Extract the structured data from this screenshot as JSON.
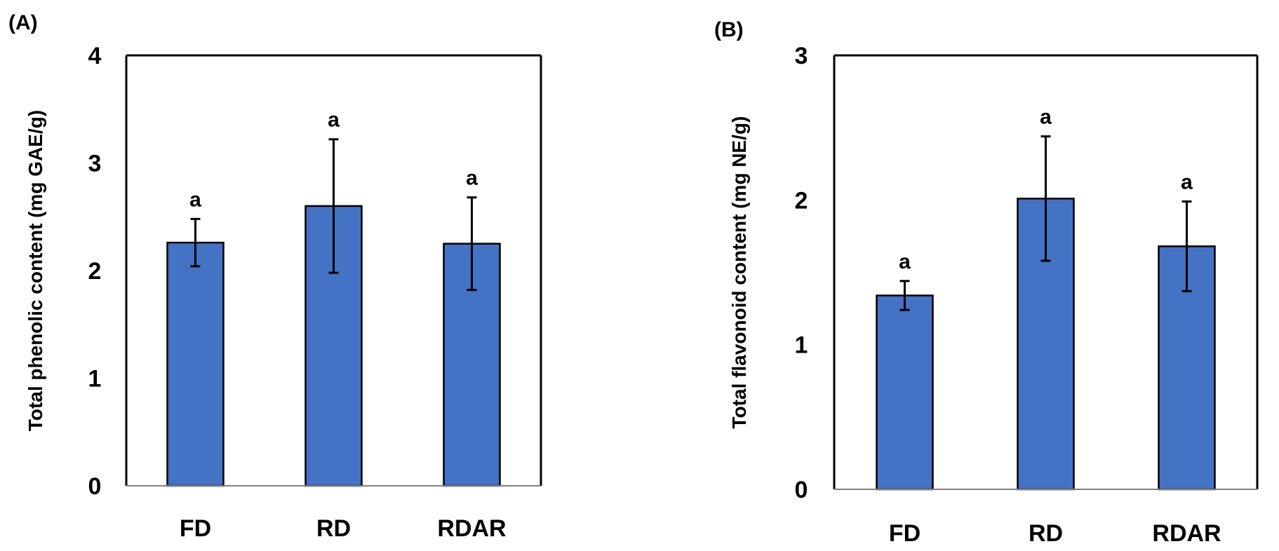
{
  "chart_data": [
    {
      "type": "bar",
      "panel_label": "(A)",
      "categories": [
        "FD",
        "RD",
        "RDAR"
      ],
      "values": [
        2.26,
        2.6,
        2.25
      ],
      "error": [
        0.22,
        0.62,
        0.43
      ],
      "significance": [
        "a",
        "a",
        "a"
      ],
      "ylabel": "Total phenolic content (mg GAE/g)",
      "xlabel": "",
      "ylim": [
        0,
        4
      ],
      "yticks": [
        "0",
        "1",
        "2",
        "3",
        "4"
      ],
      "grid": false,
      "bar_color": "#4472C4"
    },
    {
      "type": "bar",
      "panel_label": "(B)",
      "categories": [
        "FD",
        "RD",
        "RDAR"
      ],
      "values": [
        1.34,
        2.01,
        1.68
      ],
      "error": [
        0.1,
        0.43,
        0.31
      ],
      "significance": [
        "a",
        "a",
        "a"
      ],
      "ylabel": "Total flavonoid content (mg NE/g)",
      "xlabel": "",
      "ylim": [
        0,
        3
      ],
      "yticks": [
        "0",
        "1",
        "2",
        "3"
      ],
      "grid": false,
      "bar_color": "#4472C4"
    }
  ]
}
